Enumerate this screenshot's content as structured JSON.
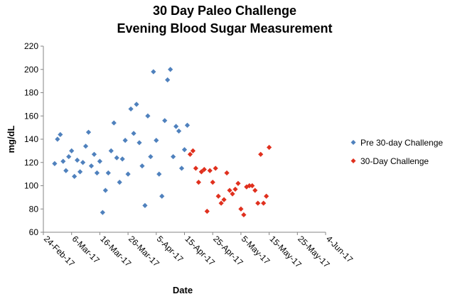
{
  "chart_data": {
    "type": "scatter",
    "title_line1": "30 Day Paleo Challenge",
    "title_line2": "Evening Blood Sugar Measurement",
    "xlabel": "Date",
    "ylabel": "mg/dL",
    "ylim": [
      60,
      220
    ],
    "yticks": [
      60,
      80,
      100,
      120,
      140,
      160,
      180,
      200,
      220
    ],
    "xlim_days": [
      0,
      100
    ],
    "xticks": [
      {
        "day": 0,
        "label": "24-Feb-17"
      },
      {
        "day": 10,
        "label": "6-Mar-17"
      },
      {
        "day": 20,
        "label": "16-Mar-17"
      },
      {
        "day": 30,
        "label": "26-Mar-17"
      },
      {
        "day": 40,
        "label": "5-Apr-17"
      },
      {
        "day": 50,
        "label": "15-Apr-17"
      },
      {
        "day": 60,
        "label": "25-Apr-17"
      },
      {
        "day": 70,
        "label": "5-May-17"
      },
      {
        "day": 80,
        "label": "15-May-17"
      },
      {
        "day": 90,
        "label": "25-May-17"
      },
      {
        "day": 100,
        "label": "4-Jun-17"
      }
    ],
    "legend_position": "right",
    "series": [
      {
        "name": "Pre 30-day Challenge",
        "color": "#4f81bd",
        "marker": "diamond",
        "points": [
          {
            "x": 4,
            "y": 119
          },
          {
            "x": 5,
            "y": 140
          },
          {
            "x": 6,
            "y": 144
          },
          {
            "x": 7,
            "y": 121
          },
          {
            "x": 8,
            "y": 113
          },
          {
            "x": 9,
            "y": 125
          },
          {
            "x": 10,
            "y": 130
          },
          {
            "x": 11,
            "y": 108
          },
          {
            "x": 12,
            "y": 122
          },
          {
            "x": 13,
            "y": 112
          },
          {
            "x": 14,
            "y": 120
          },
          {
            "x": 15,
            "y": 134
          },
          {
            "x": 16,
            "y": 146
          },
          {
            "x": 17,
            "y": 117
          },
          {
            "x": 18,
            "y": 127
          },
          {
            "x": 19,
            "y": 111
          },
          {
            "x": 20,
            "y": 121
          },
          {
            "x": 21,
            "y": 77
          },
          {
            "x": 22,
            "y": 96
          },
          {
            "x": 23,
            "y": 111
          },
          {
            "x": 24,
            "y": 130
          },
          {
            "x": 25,
            "y": 154
          },
          {
            "x": 26,
            "y": 124
          },
          {
            "x": 27,
            "y": 103
          },
          {
            "x": 28,
            "y": 123
          },
          {
            "x": 29,
            "y": 139
          },
          {
            "x": 30,
            "y": 110
          },
          {
            "x": 31,
            "y": 166
          },
          {
            "x": 32,
            "y": 145
          },
          {
            "x": 33,
            "y": 170
          },
          {
            "x": 34,
            "y": 137
          },
          {
            "x": 35,
            "y": 117
          },
          {
            "x": 36,
            "y": 83
          },
          {
            "x": 37,
            "y": 160
          },
          {
            "x": 38,
            "y": 125
          },
          {
            "x": 39,
            "y": 198
          },
          {
            "x": 40,
            "y": 139
          },
          {
            "x": 41,
            "y": 110
          },
          {
            "x": 42,
            "y": 91
          },
          {
            "x": 43,
            "y": 156
          },
          {
            "x": 44,
            "y": 191
          },
          {
            "x": 45,
            "y": 200
          },
          {
            "x": 46,
            "y": 125
          },
          {
            "x": 47,
            "y": 151
          },
          {
            "x": 48,
            "y": 147
          },
          {
            "x": 49,
            "y": 115
          },
          {
            "x": 50,
            "y": 131
          },
          {
            "x": 51,
            "y": 152
          }
        ]
      },
      {
        "name": "30-Day Challenge",
        "color": "#e0301e",
        "marker": "diamond",
        "points": [
          {
            "x": 52,
            "y": 127
          },
          {
            "x": 53,
            "y": 130
          },
          {
            "x": 54,
            "y": 115
          },
          {
            "x": 55,
            "y": 103
          },
          {
            "x": 56,
            "y": 112
          },
          {
            "x": 57,
            "y": 114
          },
          {
            "x": 58,
            "y": 78
          },
          {
            "x": 59,
            "y": 113
          },
          {
            "x": 60,
            "y": 103
          },
          {
            "x": 61,
            "y": 115
          },
          {
            "x": 62,
            "y": 91
          },
          {
            "x": 63,
            "y": 85
          },
          {
            "x": 64,
            "y": 88
          },
          {
            "x": 65,
            "y": 111
          },
          {
            "x": 66,
            "y": 96
          },
          {
            "x": 67,
            "y": 93
          },
          {
            "x": 68,
            "y": 97
          },
          {
            "x": 69,
            "y": 102
          },
          {
            "x": 70,
            "y": 80
          },
          {
            "x": 71,
            "y": 75
          },
          {
            "x": 72,
            "y": 99
          },
          {
            "x": 73,
            "y": 100
          },
          {
            "x": 74,
            "y": 100
          },
          {
            "x": 75,
            "y": 96
          },
          {
            "x": 76,
            "y": 85
          },
          {
            "x": 77,
            "y": 127
          },
          {
            "x": 78,
            "y": 85
          },
          {
            "x": 79,
            "y": 91
          },
          {
            "x": 80,
            "y": 133
          }
        ]
      }
    ]
  }
}
